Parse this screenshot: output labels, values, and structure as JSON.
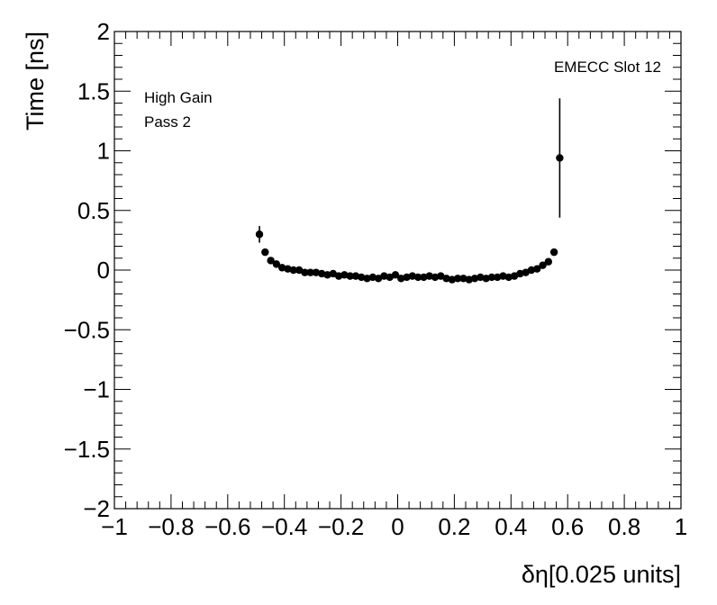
{
  "chart_data": {
    "type": "scatter",
    "title": "",
    "xlabel": "δη[0.025 units]",
    "ylabel": "Time [ns]",
    "xlim": [
      -1,
      1
    ],
    "ylim": [
      -2,
      2
    ],
    "x_major_ticks": [
      -1,
      -0.8,
      -0.6,
      -0.4,
      -0.2,
      0,
      0.2,
      0.4,
      0.6,
      0.8,
      1
    ],
    "x_tick_labels": [
      "−1",
      "−0.8",
      "−0.6",
      "−0.4",
      "−0.2",
      "0",
      "0.2",
      "0.4",
      "0.6",
      "0.8",
      "1"
    ],
    "y_major_ticks": [
      -2,
      -1.5,
      -1,
      -0.5,
      0,
      0.5,
      1,
      1.5,
      2
    ],
    "y_tick_labels": [
      "−2",
      "−1.5",
      "−1",
      "−0.5",
      "0",
      "0.5",
      "1",
      "1.5",
      "2"
    ],
    "grid": false,
    "annotations": {
      "top_right": "EMECC Slot 12",
      "line1": "High Gain",
      "line2": "Pass 2"
    },
    "points": [
      {
        "x": -0.488,
        "y": 0.3,
        "err": 0.07
      },
      {
        "x": -0.468,
        "y": 0.15,
        "err": 0.02
      },
      {
        "x": -0.448,
        "y": 0.08,
        "err": 0.01
      },
      {
        "x": -0.428,
        "y": 0.05,
        "err": 0.01
      },
      {
        "x": -0.408,
        "y": 0.02,
        "err": 0.01
      },
      {
        "x": -0.388,
        "y": 0.01,
        "err": 0.01
      },
      {
        "x": -0.368,
        "y": 0.0,
        "err": 0.01
      },
      {
        "x": -0.348,
        "y": 0.0,
        "err": 0.01
      },
      {
        "x": -0.328,
        "y": -0.02,
        "err": 0.01
      },
      {
        "x": -0.308,
        "y": -0.02,
        "err": 0.01
      },
      {
        "x": -0.288,
        "y": -0.02,
        "err": 0.01
      },
      {
        "x": -0.268,
        "y": -0.03,
        "err": 0.01
      },
      {
        "x": -0.248,
        "y": -0.04,
        "err": 0.01
      },
      {
        "x": -0.228,
        "y": -0.03,
        "err": 0.01
      },
      {
        "x": -0.208,
        "y": -0.05,
        "err": 0.01
      },
      {
        "x": -0.188,
        "y": -0.04,
        "err": 0.01
      },
      {
        "x": -0.168,
        "y": -0.05,
        "err": 0.01
      },
      {
        "x": -0.148,
        "y": -0.05,
        "err": 0.01
      },
      {
        "x": -0.128,
        "y": -0.06,
        "err": 0.01
      },
      {
        "x": -0.108,
        "y": -0.07,
        "err": 0.01
      },
      {
        "x": -0.088,
        "y": -0.06,
        "err": 0.01
      },
      {
        "x": -0.068,
        "y": -0.07,
        "err": 0.01
      },
      {
        "x": -0.048,
        "y": -0.05,
        "err": 0.01
      },
      {
        "x": -0.028,
        "y": -0.06,
        "err": 0.01
      },
      {
        "x": -0.008,
        "y": -0.04,
        "err": 0.01
      },
      {
        "x": 0.012,
        "y": -0.07,
        "err": 0.01
      },
      {
        "x": 0.032,
        "y": -0.06,
        "err": 0.01
      },
      {
        "x": 0.052,
        "y": -0.05,
        "err": 0.01
      },
      {
        "x": 0.072,
        "y": -0.06,
        "err": 0.01
      },
      {
        "x": 0.092,
        "y": -0.06,
        "err": 0.01
      },
      {
        "x": 0.112,
        "y": -0.05,
        "err": 0.01
      },
      {
        "x": 0.132,
        "y": -0.06,
        "err": 0.01
      },
      {
        "x": 0.152,
        "y": -0.05,
        "err": 0.01
      },
      {
        "x": 0.172,
        "y": -0.07,
        "err": 0.01
      },
      {
        "x": 0.192,
        "y": -0.08,
        "err": 0.01
      },
      {
        "x": 0.212,
        "y": -0.07,
        "err": 0.01
      },
      {
        "x": 0.232,
        "y": -0.07,
        "err": 0.01
      },
      {
        "x": 0.252,
        "y": -0.08,
        "err": 0.01
      },
      {
        "x": 0.272,
        "y": -0.07,
        "err": 0.01
      },
      {
        "x": 0.292,
        "y": -0.06,
        "err": 0.01
      },
      {
        "x": 0.312,
        "y": -0.07,
        "err": 0.01
      },
      {
        "x": 0.332,
        "y": -0.06,
        "err": 0.01
      },
      {
        "x": 0.352,
        "y": -0.06,
        "err": 0.01
      },
      {
        "x": 0.372,
        "y": -0.05,
        "err": 0.01
      },
      {
        "x": 0.392,
        "y": -0.06,
        "err": 0.01
      },
      {
        "x": 0.412,
        "y": -0.05,
        "err": 0.01
      },
      {
        "x": 0.432,
        "y": -0.03,
        "err": 0.01
      },
      {
        "x": 0.452,
        "y": -0.02,
        "err": 0.01
      },
      {
        "x": 0.472,
        "y": 0.0,
        "err": 0.01
      },
      {
        "x": 0.492,
        "y": 0.01,
        "err": 0.01
      },
      {
        "x": 0.512,
        "y": 0.04,
        "err": 0.01
      },
      {
        "x": 0.532,
        "y": 0.07,
        "err": 0.02
      },
      {
        "x": 0.552,
        "y": 0.15,
        "err": 0.02
      },
      {
        "x": 0.572,
        "y": 0.94,
        "err": 0.5
      }
    ]
  }
}
